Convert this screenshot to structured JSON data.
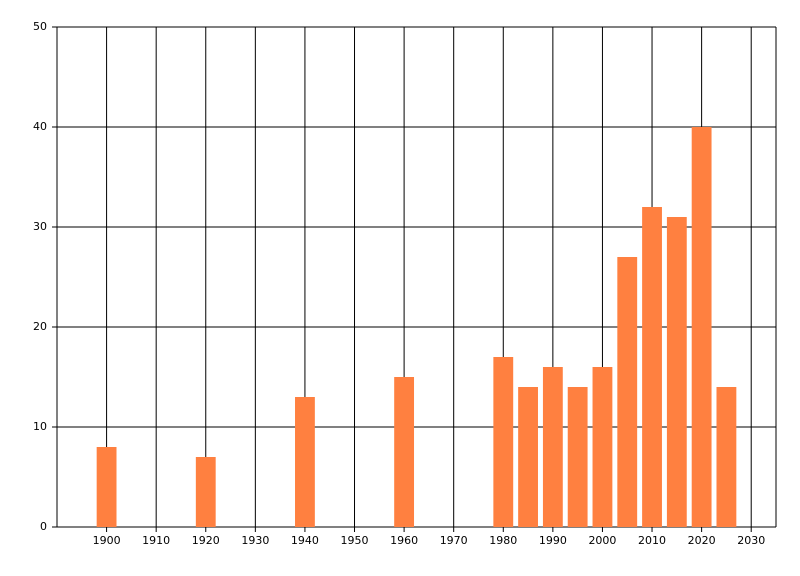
{
  "chart_data": {
    "type": "bar",
    "x": [
      1900,
      1920,
      1940,
      1960,
      1980,
      1985,
      1990,
      1995,
      2000,
      2005,
      2010,
      2015,
      2020,
      2025
    ],
    "values": [
      8,
      7,
      13,
      15,
      17,
      14,
      16,
      14,
      16,
      27,
      32,
      31,
      40,
      14
    ],
    "color": "#ff8040",
    "xlim": [
      1890,
      2035
    ],
    "xticks": [
      1900,
      1910,
      1920,
      1930,
      1940,
      1950,
      1960,
      1970,
      1980,
      1990,
      2000,
      2010,
      2020,
      2030
    ],
    "ylim": [
      0,
      50
    ],
    "yticks": [
      0,
      10,
      20,
      30,
      40,
      50
    ],
    "grid": true
  }
}
